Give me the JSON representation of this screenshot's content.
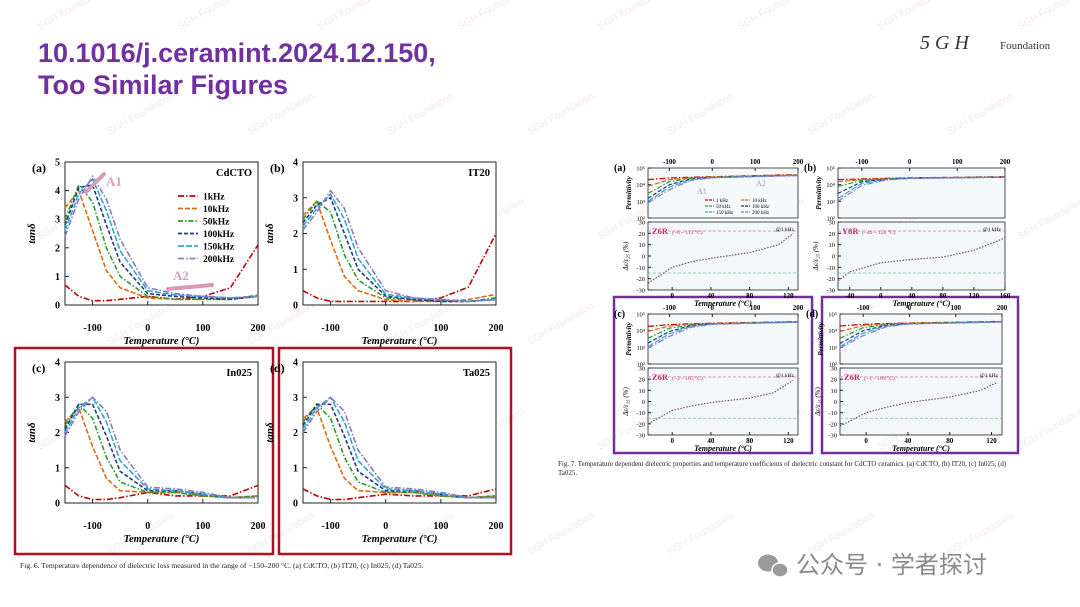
{
  "header": {
    "title_line1": "10.1016/j.ceramint.2024.12.150,",
    "title_line2": "Too Similar Figures",
    "logo_mark": "5 G H",
    "logo_text": "Foundation"
  },
  "watermark": "SGH Foundation",
  "fig6": {
    "caption": "Fig. 6. Temperature dependence of dielectric loss measured in the range of −150–200 °C. (a) CdCTO, (b) IT20, (c) In025, (d) Ta025.",
    "x_label": "Temperature (°C)",
    "y_label": "tanδ",
    "xlim": [
      -150,
      200
    ],
    "xticks": [
      -100,
      0,
      100,
      200
    ],
    "x": [
      -150,
      -125,
      -100,
      -75,
      -50,
      0,
      50,
      100,
      150,
      200
    ],
    "legend": [
      {
        "name": "1kHz",
        "color": "#c00000"
      },
      {
        "name": "10kHz",
        "color": "#e06a10"
      },
      {
        "name": "50kHz",
        "color": "#2a9a2a"
      },
      {
        "name": "100kHz",
        "color": "#203a8a"
      },
      {
        "name": "150kHz",
        "color": "#30a8c8"
      },
      {
        "name": "200kHz",
        "color": "#8a78c8"
      }
    ],
    "annotations": [
      "A1",
      "A2"
    ],
    "panels": [
      {
        "tag": "(a)",
        "name": "CdCTO",
        "ylim": [
          0,
          5
        ],
        "yticks": [
          0,
          1,
          2,
          3,
          4,
          5
        ],
        "series": [
          {
            "values": [
              0.7,
              0.3,
              0.15,
              0.15,
              0.2,
              0.3,
              0.2,
              0.3,
              0.6,
              2.1
            ]
          },
          {
            "values": [
              3.4,
              4.0,
              2.6,
              1.2,
              0.6,
              0.25,
              0.2,
              0.2,
              0.2,
              0.35
            ]
          },
          {
            "values": [
              3.0,
              4.2,
              3.6,
              2.0,
              1.0,
              0.3,
              0.2,
              0.2,
              0.2,
              0.3
            ]
          },
          {
            "values": [
              2.8,
              4.1,
              4.2,
              2.8,
              1.5,
              0.4,
              0.3,
              0.25,
              0.2,
              0.3
            ]
          },
          {
            "values": [
              2.6,
              3.9,
              4.4,
              3.3,
              1.9,
              0.5,
              0.35,
              0.3,
              0.25,
              0.3
            ]
          },
          {
            "values": [
              2.4,
              3.7,
              4.5,
              3.7,
              2.3,
              0.6,
              0.4,
              0.3,
              0.25,
              0.3
            ]
          }
        ]
      },
      {
        "tag": "(b)",
        "name": "IT20",
        "ylim": [
          0,
          4
        ],
        "yticks": [
          0,
          1,
          2,
          3,
          4
        ],
        "series": [
          {
            "values": [
              0.4,
              0.2,
              0.1,
              0.1,
              0.1,
              0.1,
              0.1,
              0.2,
              0.5,
              2.0
            ]
          },
          {
            "values": [
              2.5,
              2.9,
              1.8,
              0.8,
              0.4,
              0.15,
              0.1,
              0.1,
              0.15,
              0.3
            ]
          },
          {
            "values": [
              2.4,
              2.9,
              2.6,
              1.4,
              0.7,
              0.2,
              0.15,
              0.1,
              0.1,
              0.2
            ]
          },
          {
            "values": [
              2.3,
              2.8,
              3.0,
              2.0,
              1.0,
              0.25,
              0.15,
              0.1,
              0.1,
              0.15
            ]
          },
          {
            "values": [
              2.2,
              2.7,
              3.1,
              2.4,
              1.3,
              0.3,
              0.2,
              0.15,
              0.1,
              0.15
            ]
          },
          {
            "values": [
              2.1,
              2.6,
              3.2,
              2.7,
              1.6,
              0.4,
              0.2,
              0.15,
              0.1,
              0.15
            ]
          }
        ]
      },
      {
        "tag": "(c)",
        "name": "In025",
        "ylim": [
          0,
          4
        ],
        "yticks": [
          0,
          1,
          2,
          3,
          4
        ],
        "series": [
          {
            "values": [
              0.5,
              0.2,
              0.1,
              0.1,
              0.15,
              0.3,
              0.2,
              0.2,
              0.2,
              0.5
            ]
          },
          {
            "values": [
              2.3,
              2.7,
              1.6,
              0.7,
              0.35,
              0.3,
              0.3,
              0.2,
              0.15,
              0.2
            ]
          },
          {
            "values": [
              2.2,
              2.8,
              2.4,
              1.3,
              0.6,
              0.3,
              0.3,
              0.2,
              0.15,
              0.2
            ]
          },
          {
            "values": [
              2.1,
              2.8,
              2.8,
              1.9,
              0.9,
              0.35,
              0.35,
              0.25,
              0.15,
              0.15
            ]
          },
          {
            "values": [
              2.0,
              2.7,
              3.0,
              2.3,
              1.2,
              0.4,
              0.35,
              0.25,
              0.15,
              0.15
            ]
          },
          {
            "values": [
              1.9,
              2.6,
              3.0,
              2.6,
              1.5,
              0.45,
              0.4,
              0.3,
              0.15,
              0.15
            ]
          }
        ]
      },
      {
        "tag": "(d)",
        "name": "Ta025",
        "ylim": [
          0,
          4
        ],
        "yticks": [
          0,
          1,
          2,
          3,
          4
        ],
        "series": [
          {
            "values": [
              0.4,
              0.2,
              0.1,
              0.1,
              0.15,
              0.25,
              0.2,
              0.2,
              0.2,
              0.4
            ]
          },
          {
            "values": [
              2.4,
              2.7,
              1.6,
              0.7,
              0.35,
              0.3,
              0.3,
              0.2,
              0.15,
              0.2
            ]
          },
          {
            "values": [
              2.3,
              2.8,
              2.4,
              1.3,
              0.6,
              0.3,
              0.3,
              0.2,
              0.15,
              0.2
            ]
          },
          {
            "values": [
              2.2,
              2.8,
              2.8,
              1.9,
              0.9,
              0.35,
              0.35,
              0.25,
              0.15,
              0.15
            ]
          },
          {
            "values": [
              2.1,
              2.7,
              3.0,
              2.3,
              1.2,
              0.4,
              0.35,
              0.25,
              0.15,
              0.15
            ]
          },
          {
            "values": [
              2.0,
              2.6,
              3.0,
              2.6,
              1.5,
              0.45,
              0.4,
              0.3,
              0.15,
              0.15
            ]
          }
        ]
      }
    ]
  },
  "fig7": {
    "caption": "Fig. 7. Temperature dependent dielectric properties and temperature coefficients of dielectric constant for CdCTO ceramics. (a) CdCTO, (b) IT20, (c) In025, (d) Ta025.",
    "x_label": "Temperature (°C)",
    "y_label_top": "Permittivity",
    "y_label_bottom": "Δε/ε₂₅ (%)",
    "top_xlim": [
      -150,
      200
    ],
    "top_xticks": [
      -100,
      0,
      100,
      200
    ],
    "top_x": [
      -150,
      -100,
      -50,
      0,
      200
    ],
    "log_scale": true,
    "top_ylim": [
      100,
      100000
    ],
    "top_yticks": [
      {
        "value": 100,
        "label": "10²"
      },
      {
        "value": 1000,
        "label": "10³"
      },
      {
        "value": 10000,
        "label": "10⁴"
      },
      {
        "value": 100000,
        "label": "10⁵"
      }
    ],
    "bottom_ylim": [
      -30,
      30
    ],
    "bottom_yticks": [
      -30,
      -20,
      -10,
      0,
      10,
      20,
      30
    ],
    "limits": [
      22,
      -15
    ],
    "legend": [
      {
        "name": "1 kHz",
        "color": "#c00000"
      },
      {
        "name": "10 kHz",
        "color": "#e06a10"
      },
      {
        "name": "50 kHz",
        "color": "#2a9a2a"
      },
      {
        "name": "100 kHz",
        "color": "#203a8a"
      },
      {
        "name": "150 kHz",
        "color": "#30a8c8"
      },
      {
        "name": "200 kHz",
        "color": "#8a78c8"
      }
    ],
    "annotations": [
      "A1",
      "A2"
    ],
    "panels": [
      {
        "tag": "(a)",
        "grade": "Z6R",
        "range": "(−6 ~ 113 °C)",
        "freq": "@1 kHz",
        "bottom_xlim": [
          -25,
          130
        ],
        "bottom_xticks": [
          0,
          40,
          80,
          120
        ],
        "bottom_x": [
          -25,
          0,
          20,
          40,
          80,
          110,
          125
        ],
        "bottom_values": [
          -24,
          -10,
          -5,
          -2,
          3,
          10,
          20
        ],
        "top_series": [
          {
            "values": [
              20000,
              25000,
              28000,
              30000,
              40000
            ]
          },
          {
            "values": [
              8000,
              20000,
              26000,
              29000,
              38000
            ]
          },
          {
            "values": [
              3000,
              15000,
              24000,
              28000,
              37000
            ]
          },
          {
            "values": [
              1500,
              10000,
              22000,
              27000,
              36000
            ]
          },
          {
            "values": [
              1000,
              7000,
              20000,
              27000,
              36000
            ]
          },
          {
            "values": [
              800,
              5000,
              18000,
              26000,
              35000
            ]
          }
        ]
      },
      {
        "tag": "(b)",
        "grade": "Y8R",
        "range": "(−40 ~ 150 °C)",
        "freq": "@1 kHz",
        "bottom_xlim": [
          -55,
          160
        ],
        "bottom_xticks": [
          -40,
          0,
          40,
          80,
          120,
          160
        ],
        "bottom_x": [
          -55,
          -40,
          0,
          40,
          80,
          120,
          160
        ],
        "bottom_values": [
          -22,
          -14,
          -6,
          -3,
          -1,
          5,
          16
        ],
        "top_series": [
          {
            "values": [
              20000,
              22000,
              24000,
              26000,
              30000
            ]
          },
          {
            "values": [
              15000,
              20000,
              23000,
              25000,
              29000
            ]
          },
          {
            "values": [
              8000,
              18000,
              22000,
              25000,
              29000
            ]
          },
          {
            "values": [
              3000,
              15000,
              21000,
              24000,
              28000
            ]
          },
          {
            "values": [
              1500,
              12000,
              20000,
              24000,
              28000
            ]
          },
          {
            "values": [
              1000,
              9000,
              19000,
              23000,
              28000
            ]
          }
        ]
      },
      {
        "tag": "(c)",
        "grade": "Z6R",
        "range": "(−3 ~ 105 °C)",
        "freq": "@1 kHz",
        "bottom_xlim": [
          -25,
          130
        ],
        "bottom_xticks": [
          0,
          40,
          80,
          120
        ],
        "bottom_x": [
          -25,
          0,
          20,
          40,
          80,
          105,
          125
        ],
        "bottom_values": [
          -20,
          -8,
          -4,
          -1,
          3,
          8,
          19
        ],
        "top_series": [
          {
            "values": [
              18000,
              23000,
              26000,
              28000,
              35000
            ]
          },
          {
            "values": [
              9000,
              19000,
              24000,
              27000,
              34000
            ]
          },
          {
            "values": [
              3500,
              14000,
              22000,
              26000,
              33000
            ]
          },
          {
            "values": [
              1800,
              9000,
              20000,
              25000,
              33000
            ]
          },
          {
            "values": [
              1100,
              6500,
              18000,
              25000,
              32000
            ]
          },
          {
            "values": [
              900,
              4500,
              16000,
              24000,
              32000
            ]
          }
        ]
      },
      {
        "tag": "(d)",
        "grade": "Z6R",
        "range": "(−1 ~ 109 °C)",
        "freq": "@1 kHz",
        "bottom_xlim": [
          -25,
          130
        ],
        "bottom_xticks": [
          0,
          40,
          80,
          120
        ],
        "bottom_x": [
          -25,
          0,
          20,
          40,
          80,
          110,
          125
        ],
        "bottom_values": [
          -22,
          -10,
          -5,
          -1,
          4,
          10,
          17
        ],
        "top_series": [
          {
            "values": [
              19000,
              24000,
              27000,
              29000,
              36000
            ]
          },
          {
            "values": [
              9000,
              20000,
              25000,
              28000,
              35000
            ]
          },
          {
            "values": [
              3500,
              15000,
              23000,
              27000,
              34000
            ]
          },
          {
            "values": [
              1700,
              10000,
              21000,
              26000,
              34000
            ]
          },
          {
            "values": [
              1100,
              7000,
              19000,
              26000,
              33000
            ]
          },
          {
            "values": [
              900,
              5000,
              17000,
              25000,
              33000
            ]
          }
        ]
      }
    ]
  },
  "footer": {
    "brand": "公众号 · 学者探讨"
  }
}
